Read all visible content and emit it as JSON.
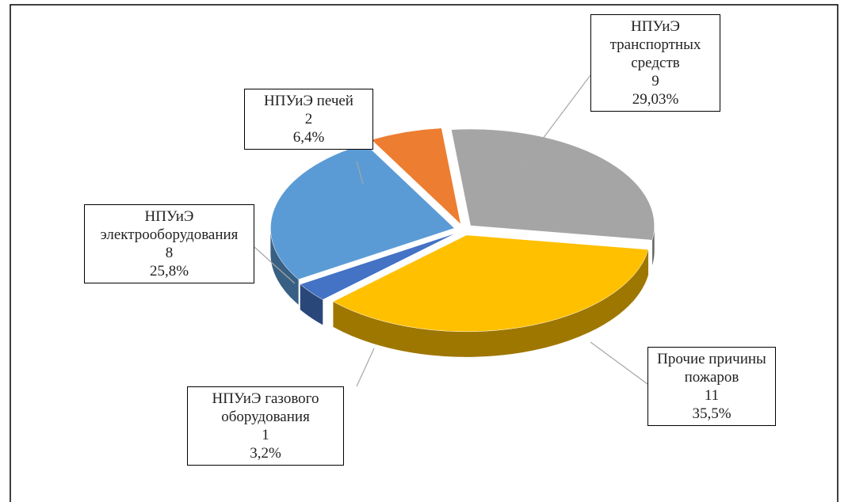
{
  "chart_data": {
    "type": "pie",
    "categories": [
      "НПУиЭ транспортных средств",
      "Прочие причины пожаров",
      "НПУиЭ газового оборудования",
      "НПУиЭ электрооборудования",
      "НПУиЭ печей"
    ],
    "counts": [
      9,
      11,
      1,
      8,
      2
    ],
    "values": [
      29.03,
      35.5,
      3.2,
      25.8,
      6.4
    ],
    "value_labels": [
      "29,03%",
      "35,5%",
      "3,2%",
      "25,8%",
      "6,4%"
    ],
    "colors": [
      "#a5a5a5",
      "#ffc000",
      "#4472c4",
      "#5b9bd5",
      "#ed7d31"
    ]
  }
}
